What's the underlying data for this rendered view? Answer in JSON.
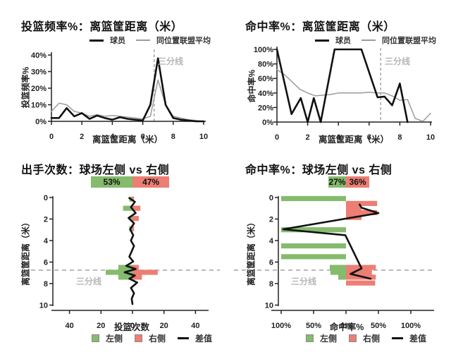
{
  "colors": {
    "green": "#85bb6d",
    "red": "#ec7e73",
    "player_line": "#111111",
    "league_line": "#9b9b9b",
    "dashed_line": "#9a9a9a",
    "annotation_text": "#b6b6b6",
    "axis": "#222222"
  },
  "chart_data": [
    {
      "id": "shot-frequency-by-distance",
      "type": "line",
      "title": "投篮频率%：离篮筐距离（米）",
      "xlabel": "离篮筐距离（米）",
      "ylabel": "投篮频率%",
      "annotation": "三分线",
      "vline_x": 6.75,
      "xlim": [
        0,
        10
      ],
      "ylim": [
        0,
        42
      ],
      "xticks": {
        "values": [
          0,
          2,
          4,
          6,
          8,
          10
        ],
        "labels": [
          "0",
          "2",
          "4",
          "6",
          "8",
          "10"
        ]
      },
      "yticks": {
        "values": [
          0,
          10,
          20,
          30,
          40
        ],
        "labels": [
          "0%",
          "10%",
          "20%",
          "30%",
          "40%"
        ]
      },
      "legend": [
        "球员",
        "同位置联盟平均"
      ],
      "series": [
        {
          "name": "球员",
          "role": "player",
          "x_start": 0,
          "x_step": 0.5,
          "values": [
            2,
            2,
            8,
            3,
            5,
            1.5,
            3.5,
            2,
            1,
            2.5,
            1.5,
            1,
            0.5,
            10,
            38,
            10,
            2,
            1,
            0.5,
            0,
            0
          ]
        },
        {
          "name": "同位置联盟平均",
          "role": "league",
          "x_start": 0,
          "x_step": 0.5,
          "values": [
            6,
            11,
            10,
            6,
            5,
            3,
            4,
            3,
            3.5,
            3,
            2.5,
            2,
            1.5,
            3,
            25,
            10,
            3,
            2,
            1,
            0.5,
            0
          ]
        }
      ]
    },
    {
      "id": "fg-pct-by-distance",
      "type": "line",
      "title": "命中率%：离篮筐距离（米）",
      "xlabel": "离篮筐距离（米）",
      "ylabel": "命中率%",
      "annotation": "三分线",
      "vline_x": 6.75,
      "xlim": [
        0,
        10
      ],
      "ylim": [
        0,
        105
      ],
      "xticks": {
        "values": [
          0,
          2,
          4,
          6,
          8,
          10
        ],
        "labels": [
          "0",
          "2",
          "4",
          "6",
          "8",
          "10"
        ]
      },
      "yticks": {
        "values": [
          0,
          20,
          40,
          60,
          80,
          100
        ],
        "labels": [
          "0%",
          "20%",
          "40%",
          "60%",
          "80%",
          "100%"
        ]
      },
      "legend": [
        "球员",
        "同位置联盟平均"
      ],
      "series": [
        {
          "name": "球员",
          "role": "player",
          "points": [
            [
              0,
              100
            ],
            [
              0.95,
              11
            ],
            [
              1.55,
              33
            ],
            [
              2.0,
              0
            ],
            [
              2.4,
              33
            ],
            [
              2.85,
              0
            ],
            [
              3.75,
              100
            ],
            [
              5.5,
              100
            ],
            [
              6.55,
              34
            ],
            [
              7.0,
              35
            ],
            [
              7.5,
              23
            ],
            [
              8.0,
              53
            ],
            [
              8.5,
              0
            ]
          ]
        },
        {
          "name": "同位置联盟平均",
          "role": "league",
          "x_start": 0,
          "x_step": 0.5,
          "values": [
            72,
            65,
            55,
            45,
            40,
            36,
            37,
            38,
            40,
            40,
            40,
            40,
            41,
            40,
            40,
            36,
            30,
            31,
            5,
            1,
            12
          ]
        }
      ]
    },
    {
      "id": "attempts-left-vs-right",
      "type": "pyramid",
      "title": "出手次数：球场左侧 vs 右侧",
      "xlabel": "投篮次数",
      "ylabel": "离篮筐距离（米）",
      "annotation": "三分线",
      "hline_d": 6.75,
      "summary": {
        "left": 53,
        "right": 47,
        "left_label": "53%",
        "right_label": "47%"
      },
      "xticks": {
        "values": [
          -40,
          -20,
          0,
          20,
          40
        ],
        "labels": [
          "40",
          "20",
          "0",
          "20",
          "40"
        ]
      },
      "yticks": {
        "values": [
          0,
          2,
          4,
          6,
          8,
          10
        ],
        "labels": [
          "0",
          "2",
          "4",
          "6",
          "8",
          "10"
        ]
      },
      "legend": [
        "左侧",
        "右侧",
        "差值"
      ],
      "bars": [
        {
          "d": 0.15,
          "left": 2,
          "right": 1
        },
        {
          "d": 1.0,
          "left": 6,
          "right": 5
        },
        {
          "d": 1.95,
          "left": 1.5,
          "right": 4
        },
        {
          "d": 2.9,
          "left": 2,
          "right": 1
        },
        {
          "d": 6.5,
          "left": 9,
          "right": 4
        },
        {
          "d": 6.95,
          "left": 17,
          "right": 16
        },
        {
          "d": 7.4,
          "left": 9,
          "right": 6
        }
      ],
      "diff_line": [
        [
          0.05,
          -2
        ],
        [
          0.4,
          1.5
        ],
        [
          0.9,
          -1
        ],
        [
          1.45,
          2
        ],
        [
          1.9,
          -2.5
        ],
        [
          2.4,
          1
        ],
        [
          2.95,
          -1.5
        ],
        [
          3.5,
          0.5
        ],
        [
          4.0,
          -1
        ],
        [
          4.5,
          1
        ],
        [
          5.0,
          -0.5
        ],
        [
          5.5,
          -2
        ],
        [
          5.95,
          0.5
        ],
        [
          6.35,
          -4
        ],
        [
          6.65,
          2
        ],
        [
          6.95,
          -5
        ],
        [
          7.25,
          1.5
        ],
        [
          7.55,
          -2
        ],
        [
          7.9,
          3
        ],
        [
          8.4,
          -1
        ],
        [
          8.9,
          1
        ],
        [
          9.4,
          -0.5
        ],
        [
          9.9,
          0
        ]
      ]
    },
    {
      "id": "fg-pct-left-vs-right",
      "type": "pyramid",
      "title": "命中率%：球场左侧 vs 右侧",
      "xlabel": "命中率%",
      "ylabel": "离篮筐距离（米）",
      "annotation": "三分线",
      "hline_d": 6.75,
      "summary": {
        "left": 27,
        "right": 36,
        "left_label": "27%",
        "right_label": "36%"
      },
      "xticks": {
        "values": [
          -100,
          -50,
          0,
          50,
          100
        ],
        "labels": [
          "100%",
          "50%",
          "0%",
          "50%",
          "100%"
        ]
      },
      "yticks": {
        "values": [
          0,
          2,
          4,
          6,
          8,
          10
        ],
        "labels": [
          "0",
          "2",
          "4",
          "6",
          "8",
          "10"
        ]
      },
      "legend": [
        "左侧",
        "右侧",
        "差值"
      ],
      "bars": [
        {
          "d": 0.1,
          "left": 100,
          "right": 0
        },
        {
          "d": 0.55,
          "left": 0,
          "right": 48
        },
        {
          "d": 0.95,
          "left": 0,
          "right": 24
        },
        {
          "d": 1.4,
          "left": 0,
          "right": 48
        },
        {
          "d": 1.85,
          "left": 0,
          "right": 24
        },
        {
          "d": 3.0,
          "left": 100,
          "right": 0
        },
        {
          "d": 4.5,
          "left": 100,
          "right": 0
        },
        {
          "d": 5.5,
          "left": 100,
          "right": 0
        },
        {
          "d": 6.5,
          "left": 25,
          "right": 46
        },
        {
          "d": 6.95,
          "left": 24,
          "right": 40
        },
        {
          "d": 7.4,
          "left": 12,
          "right": 46
        },
        {
          "d": 7.95,
          "left": 0,
          "right": 45
        }
      ],
      "diff_line": [
        [
          0.65,
          21
        ],
        [
          0.95,
          24
        ],
        [
          1.45,
          50
        ],
        [
          2.95,
          -97
        ],
        [
          3.5,
          -1
        ],
        [
          6.6,
          24
        ],
        [
          7.1,
          7
        ],
        [
          7.55,
          38
        ]
      ]
    }
  ]
}
